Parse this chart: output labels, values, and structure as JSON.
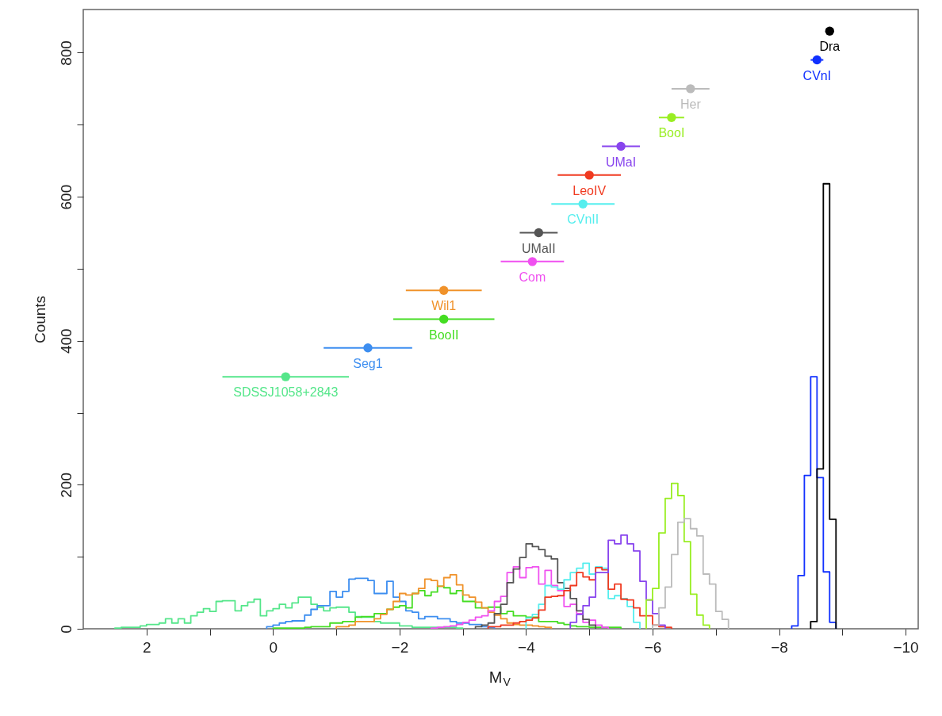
{
  "chart_data": {
    "type": "histogram",
    "xlabel": "M$_{V}$",
    "ylabel": "Counts",
    "xlim": [
      3,
      -10.2
    ],
    "ylim": [
      0,
      860
    ],
    "xticks": [
      2,
      {
        "value": 1,
        "label": null
      },
      0,
      {
        "value": -1,
        "label": null
      },
      -2,
      {
        "value": -3,
        "label": null
      },
      -4,
      {
        "value": -5,
        "label": null
      },
      -6,
      {
        "value": -7,
        "label": null
      },
      -8,
      {
        "value": -9,
        "label": null
      },
      -10
    ],
    "yticks": [
      0,
      {
        "value": 100,
        "label": null
      },
      200,
      {
        "value": 300,
        "label": null
      },
      400,
      {
        "value": 500,
        "label": null
      },
      600,
      {
        "value": 700,
        "label": null
      },
      800
    ],
    "grid": false,
    "series": [
      {
        "color": "#55e68a",
        "bins": [
          2.5,
          2.4,
          2.3,
          2.2,
          2.1,
          2.0,
          1.9,
          1.8,
          1.7,
          1.6,
          1.5,
          1.4,
          1.3,
          1.2,
          1.1,
          1.0,
          0.9,
          0.8,
          0.7,
          0.6,
          0.5,
          0.4,
          0.3,
          0.2,
          0.1,
          0.0,
          -0.1,
          -0.2,
          -0.3,
          -0.4,
          -0.5,
          -0.6,
          -0.7,
          -0.8,
          -0.9,
          -1.0,
          -1.1,
          -1.2,
          -1.3,
          -1.4,
          -1.5,
          -1.6,
          -1.7,
          -1.8,
          -1.9,
          -2.0,
          -2.1,
          -2.2,
          -2.3,
          -2.4,
          -2.5,
          -2.6,
          -2.7,
          -2.8,
          -2.9,
          -3.0
        ],
        "values": [
          1,
          2,
          2,
          2,
          4,
          6,
          6,
          8,
          14,
          8,
          14,
          8,
          18,
          23,
          28,
          24,
          38,
          39,
          39,
          25,
          32,
          37,
          41,
          18,
          25,
          28,
          34,
          29,
          36,
          44,
          44,
          34,
          30,
          25,
          29,
          30,
          30,
          23,
          17,
          16,
          16,
          10,
          8,
          8,
          8,
          4,
          4,
          2,
          2,
          2,
          2,
          2,
          2,
          2,
          1
        ]
      },
      {
        "color": "#3d8ef0",
        "bins": [
          0.1,
          0.0,
          -0.1,
          -0.2,
          -0.3,
          -0.4,
          -0.5,
          -0.6,
          -0.7,
          -0.8,
          -0.9,
          -1.0,
          -1.1,
          -1.2,
          -1.3,
          -1.4,
          -1.5,
          -1.6,
          -1.7,
          -1.8,
          -1.9,
          -2.0,
          -2.1,
          -2.2,
          -2.3,
          -2.4,
          -2.5,
          -2.6,
          -2.7,
          -2.8,
          -2.9,
          -3.0,
          -3.1,
          -3.2,
          -3.3,
          -3.4,
          -3.5
        ],
        "values": [
          3,
          5,
          8,
          10,
          11,
          11,
          19,
          27,
          32,
          32,
          52,
          44,
          52,
          69,
          70,
          70,
          67,
          49,
          49,
          66,
          44,
          38,
          25,
          23,
          14,
          17,
          17,
          14,
          14,
          10,
          8,
          8,
          6,
          6,
          3,
          2
        ]
      },
      {
        "color": "#44dd22",
        "bins": [
          0.0,
          -0.1,
          -0.2,
          -0.3,
          -0.4,
          -0.5,
          -0.6,
          -0.7,
          -0.8,
          -0.9,
          -1.0,
          -1.1,
          -1.2,
          -1.3,
          -1.4,
          -1.5,
          -1.6,
          -1.7,
          -1.8,
          -1.9,
          -2.0,
          -2.1,
          -2.2,
          -2.3,
          -2.4,
          -2.5,
          -2.6,
          -2.7,
          -2.8,
          -2.9,
          -3.0,
          -3.1,
          -3.2,
          -3.3,
          -3.4,
          -3.5,
          -3.6,
          -3.7,
          -3.8,
          -3.9,
          -4.0,
          -4.1,
          -4.2,
          -4.3,
          -4.4,
          -4.5,
          -4.6,
          -4.7,
          -4.8,
          -4.9,
          -5.0,
          -5.1,
          -5.2,
          -5.3,
          -5.4,
          -5.5
        ],
        "values": [
          1,
          1,
          1,
          1,
          1,
          2,
          3,
          3,
          3,
          8,
          8,
          10,
          10,
          16,
          17,
          17,
          21,
          21,
          27,
          30,
          32,
          29,
          49,
          53,
          46,
          51,
          59,
          57,
          49,
          53,
          38,
          38,
          29,
          29,
          30,
          30,
          21,
          24,
          18,
          18,
          16,
          16,
          10,
          10,
          10,
          8,
          6,
          4,
          3,
          3,
          2,
          2,
          2,
          2,
          2
        ]
      },
      {
        "color": "#f0922a",
        "bins": [
          -1.0,
          -1.1,
          -1.2,
          -1.3,
          -1.4,
          -1.5,
          -1.6,
          -1.7,
          -1.8,
          -1.9,
          -2.0,
          -2.1,
          -2.2,
          -2.3,
          -2.4,
          -2.5,
          -2.6,
          -2.7,
          -2.8,
          -2.9,
          -3.0,
          -3.1,
          -3.2,
          -3.3,
          -3.4,
          -3.5,
          -3.6,
          -3.7,
          -3.8,
          -3.9,
          -4.0,
          -4.1,
          -4.2,
          -4.3,
          -4.4
        ],
        "values": [
          3,
          3,
          5,
          10,
          10,
          10,
          14,
          20,
          27,
          38,
          49,
          47,
          49,
          56,
          69,
          67,
          59,
          71,
          75,
          61,
          47,
          44,
          37,
          29,
          23,
          19,
          14,
          8,
          6,
          5,
          5,
          4,
          3,
          2
        ]
      },
      {
        "color": "#f050f0",
        "bins": [
          -2.5,
          -2.6,
          -2.7,
          -2.8,
          -2.9,
          -3.0,
          -3.1,
          -3.2,
          -3.3,
          -3.4,
          -3.5,
          -3.6,
          -3.7,
          -3.8,
          -3.9,
          -4.0,
          -4.1,
          -4.2,
          -4.3,
          -4.4,
          -4.5,
          -4.6,
          -4.7,
          -4.8,
          -4.9,
          -5.0,
          -5.1,
          -5.2,
          -5.3
        ],
        "values": [
          1,
          2,
          3,
          4,
          6,
          9,
          12,
          16,
          18,
          25,
          38,
          45,
          78,
          86,
          71,
          85,
          86,
          62,
          81,
          60,
          53,
          31,
          34,
          21,
          9,
          12,
          5,
          2
        ]
      },
      {
        "color": "#555555",
        "bins": [
          -3.2,
          -3.3,
          -3.4,
          -3.5,
          -3.6,
          -3.7,
          -3.8,
          -3.9,
          -4.0,
          -4.1,
          -4.2,
          -4.3,
          -4.4,
          -4.5,
          -4.6,
          -4.7,
          -4.8,
          -4.9,
          -5.0,
          -5.1
        ],
        "values": [
          3,
          5,
          8,
          21,
          34,
          64,
          83,
          99,
          118,
          114,
          110,
          101,
          97,
          64,
          56,
          42,
          25,
          13,
          5
        ]
      },
      {
        "color": "#55eeee",
        "bins": [
          -4.0,
          -4.1,
          -4.2,
          -4.3,
          -4.4,
          -4.5,
          -4.6,
          -4.7,
          -4.8,
          -4.9,
          -5.0,
          -5.1,
          -5.2,
          -5.3,
          -5.4,
          -5.5,
          -5.6,
          -5.7,
          -5.8
        ],
        "values": [
          15,
          20,
          34,
          60,
          58,
          55,
          68,
          78,
          84,
          91,
          76,
          86,
          84,
          42,
          46,
          42,
          31,
          9
        ]
      },
      {
        "color": "#f03a20",
        "bins": [
          -3.4,
          -3.5,
          -3.6,
          -3.7,
          -3.8,
          -3.9,
          -4.0,
          -4.1,
          -4.2,
          -4.3,
          -4.4,
          -4.5,
          -4.6,
          -4.7,
          -4.8,
          -4.9,
          -5.0,
          -5.1,
          -5.2,
          -5.3,
          -5.4,
          -5.5,
          -5.6,
          -5.7,
          -5.8,
          -5.9,
          -6.0,
          -6.1,
          -6.2,
          -6.3
        ],
        "values": [
          3,
          3,
          5,
          5,
          8,
          10,
          12,
          15,
          26,
          44,
          45,
          46,
          53,
          60,
          78,
          72,
          68,
          85,
          82,
          55,
          62,
          41,
          40,
          29,
          18,
          18,
          5,
          3,
          2
        ]
      },
      {
        "color": "#8844ee",
        "bins": [
          -4.7,
          -4.8,
          -4.9,
          -5.0,
          -5.1,
          -5.2,
          -5.3,
          -5.4,
          -5.5,
          -5.6,
          -5.7,
          -5.8,
          -5.9,
          -6.0,
          -6.1,
          -6.2
        ],
        "values": [
          9,
          20,
          32,
          44,
          78,
          78,
          123,
          118,
          130,
          118,
          108,
          66,
          40,
          21,
          5
        ]
      },
      {
        "color": "#99ee22",
        "bins": [
          -5.9,
          -6.0,
          -6.1,
          -6.2,
          -6.3,
          -6.4,
          -6.5,
          -6.6,
          -6.7,
          -6.8,
          -6.9
        ],
        "values": [
          40,
          56,
          133,
          181,
          202,
          185,
          121,
          48,
          19,
          5
        ]
      },
      {
        "color": "#bbbbbb",
        "bins": [
          -6.0,
          -6.1,
          -6.2,
          -6.3,
          -6.4,
          -6.5,
          -6.6,
          -6.7,
          -6.8,
          -6.9,
          -7.0,
          -7.1,
          -7.2
        ],
        "values": [
          5,
          29,
          58,
          103,
          148,
          153,
          139,
          129,
          76,
          62,
          24,
          13
        ]
      },
      {
        "color": "#1030ff",
        "bins": [
          -8.2,
          -8.3,
          -8.4,
          -8.5,
          -8.6,
          -8.7,
          -8.8,
          -8.9
        ],
        "values": [
          4,
          74,
          213,
          350,
          210,
          79,
          9
        ]
      },
      {
        "color": "#000000",
        "bins": [
          -8.5,
          -8.6,
          -8.7,
          -8.8,
          -8.9
        ],
        "values": [
          10,
          222,
          618,
          152
        ]
      },
      {
        "type": "scatter",
        "name": "SDSSJ1058+2843",
        "color": "#55e68a",
        "marker": "circle",
        "x": [
          -0.2
        ],
        "values": [
          350
        ],
        "xerrors": [
          1.0
        ]
      },
      {
        "type": "scatter",
        "name": "Seg1",
        "color": "#3d8ef0",
        "marker": "circle",
        "x": [
          -1.5
        ],
        "values": [
          390
        ],
        "xerrors": [
          0.7
        ]
      },
      {
        "type": "scatter",
        "name": "BooII",
        "color": "#44dd22",
        "marker": "circle",
        "x": [
          -2.7
        ],
        "values": [
          430
        ],
        "xerrors": [
          0.8
        ]
      },
      {
        "type": "scatter",
        "name": "Wil1",
        "color": "#f0922a",
        "marker": "circle",
        "x": [
          -2.7
        ],
        "values": [
          470
        ],
        "xerrors": [
          0.6
        ]
      },
      {
        "type": "scatter",
        "name": "Com",
        "color": "#f050f0",
        "marker": "circle",
        "x": [
          -4.1
        ],
        "values": [
          510
        ],
        "xerrors": [
          0.5
        ]
      },
      {
        "type": "scatter",
        "name": "UMaII",
        "color": "#555555",
        "marker": "circle",
        "x": [
          -4.2
        ],
        "values": [
          550
        ],
        "xerrors": [
          0.3
        ]
      },
      {
        "type": "scatter",
        "name": "CVnII",
        "color": "#55eeee",
        "marker": "circle",
        "x": [
          -4.9
        ],
        "values": [
          590
        ],
        "xerrors": [
          0.5
        ]
      },
      {
        "type": "scatter",
        "name": "LeoIV",
        "color": "#f03a20",
        "marker": "circle",
        "x": [
          -5.0
        ],
        "values": [
          630
        ],
        "xerrors": [
          0.5
        ]
      },
      {
        "type": "scatter",
        "name": "UMaI",
        "color": "#8844ee",
        "marker": "circle",
        "x": [
          -5.5
        ],
        "values": [
          670
        ],
        "xerrors": [
          0.3
        ]
      },
      {
        "type": "scatter",
        "name": "BooI",
        "color": "#99ee22",
        "marker": "circle",
        "x": [
          -6.3
        ],
        "values": [
          710
        ],
        "xerrors": [
          0.2
        ]
      },
      {
        "type": "scatter",
        "name": "Her",
        "color": "#bbbbbb",
        "marker": "circle",
        "x": [
          -6.6
        ],
        "values": [
          750
        ],
        "xerrors": [
          0.3
        ]
      },
      {
        "type": "scatter",
        "name": "CVnI",
        "color": "#1030ff",
        "marker": "circle",
        "x": [
          -8.6
        ],
        "values": [
          790
        ],
        "xerrors": [
          0.1
        ]
      },
      {
        "type": "scatter",
        "name": "Dra",
        "color": "#000000",
        "marker": "circle",
        "x": [
          -8.8
        ],
        "values": [
          830
        ],
        "xerrors": [
          null
        ]
      }
    ]
  }
}
